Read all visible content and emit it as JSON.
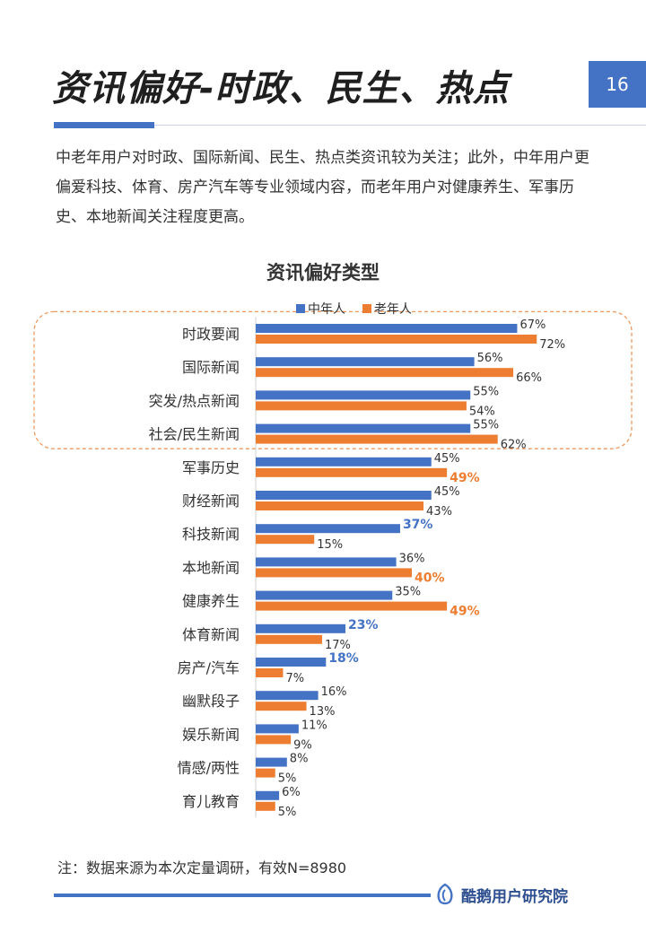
{
  "header": {
    "title": "资讯偏好-时政、民生、热点",
    "page_number": "16"
  },
  "description": "中老年用户对时政、国际新闻、民生、热点类资讯较为关注；此外，中年用户更偏爱科技、体育、房产汽车等专业领域内容，而老年用户对健康养生、军事历史、本地新闻关注程度更高。",
  "footer": {
    "note": "注：数据来源为本次定量调研，有效N=8980",
    "brand": "酷鹅用户研究院"
  },
  "colors": {
    "accent": "#4472c4",
    "series_middle": "#4472c4",
    "series_elderly": "#ed7d31"
  },
  "chart_data": {
    "type": "bar",
    "orientation": "horizontal",
    "title": "资讯偏好类型",
    "legend_position": "top",
    "categories": [
      "时政要闻",
      "国际新闻",
      "突发/热点新闻",
      "社会/民生新闻",
      "军事历史",
      "财经新闻",
      "科技新闻",
      "本地新闻",
      "健康养生",
      "体育新闻",
      "房产/汽车",
      "幽默段子",
      "娱乐新闻",
      "情感/两性",
      "育儿教育"
    ],
    "series": [
      {
        "name": "中年人",
        "color": "#4472c4",
        "values": [
          67,
          56,
          55,
          55,
          45,
          45,
          37,
          36,
          35,
          23,
          18,
          16,
          11,
          8,
          6
        ]
      },
      {
        "name": "老年人",
        "color": "#ed7d31",
        "values": [
          72,
          66,
          54,
          62,
          49,
          43,
          15,
          40,
          49,
          17,
          7,
          13,
          9,
          5,
          5
        ]
      }
    ],
    "highlight": {
      "中年人": [
        "科技新闻",
        "体育新闻",
        "房产/汽车"
      ],
      "老年人": [
        "军事历史",
        "本地新闻",
        "健康养生"
      ]
    },
    "boxed_categories": [
      "时政要闻",
      "国际新闻",
      "突发/热点新闻",
      "社会/民生新闻"
    ],
    "value_suffix": "%",
    "grid": false
  }
}
